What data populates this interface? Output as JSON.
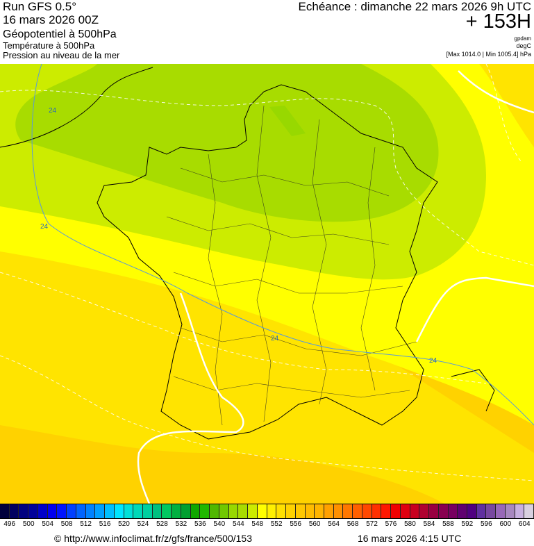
{
  "header": {
    "run": "Run GFS 0.5°",
    "run_date": "16 mars 2026 00Z",
    "field_main": "Géopotentiel à 500hPa",
    "field_2": "Température à 500hPa",
    "field_3": "Pression au niveau de la mer",
    "echeance": "Echéance : dimanche 22 mars 2026 9h UTC",
    "lead_time": "+ 153H",
    "unit_1": "gpdam",
    "unit_2": "degC",
    "minmax": "[Max 1014.0 | Min 1005.4] hPa"
  },
  "map": {
    "contour_labels": [
      "24",
      "24",
      "24",
      "24"
    ],
    "fill_colors": {
      "dark_green": "#a8dc00",
      "light_green": "#ccec00",
      "yellow": "#ffff00",
      "gold": "#ffe400",
      "dark_gold": "#ffd200"
    }
  },
  "colorbar": {
    "labels": [
      "496",
      "500",
      "504",
      "508",
      "512",
      "516",
      "520",
      "524",
      "528",
      "532",
      "536",
      "540",
      "544",
      "548",
      "552",
      "556",
      "560",
      "564",
      "568",
      "572",
      "576",
      "580",
      "584",
      "588",
      "592",
      "596",
      "600",
      "604"
    ],
    "colors": [
      "#00003c",
      "#000060",
      "#000080",
      "#00009a",
      "#0000c8",
      "#0000f0",
      "#0014ff",
      "#0040ff",
      "#0064ff",
      "#0082ff",
      "#00a0ff",
      "#00c0ff",
      "#00e6ff",
      "#00e0d8",
      "#00d8b8",
      "#00d0a0",
      "#00c080",
      "#00c860",
      "#00b040",
      "#00a030",
      "#10a800",
      "#20b800",
      "#50b800",
      "#70c800",
      "#98d800",
      "#a8dc00",
      "#ccec00",
      "#ffff00",
      "#fff000",
      "#ffe000",
      "#ffd200",
      "#ffc800",
      "#ffbc00",
      "#ffb400",
      "#ffa000",
      "#ff9000",
      "#ff7800",
      "#ff6000",
      "#ff4800",
      "#ff3000",
      "#ff1800",
      "#f00000",
      "#e00010",
      "#c80020",
      "#b00030",
      "#980040",
      "#880050",
      "#780060",
      "#600070",
      "#500080",
      "#6030a0",
      "#7848a0",
      "#9868b8",
      "#a888c0",
      "#c8b0e0",
      "#d8d0e0"
    ]
  },
  "footer": {
    "url": "© http://www.infoclimat.fr/z/gfs/france/500/153",
    "timestamp": "16 mars 2026  4:15 UTC"
  }
}
